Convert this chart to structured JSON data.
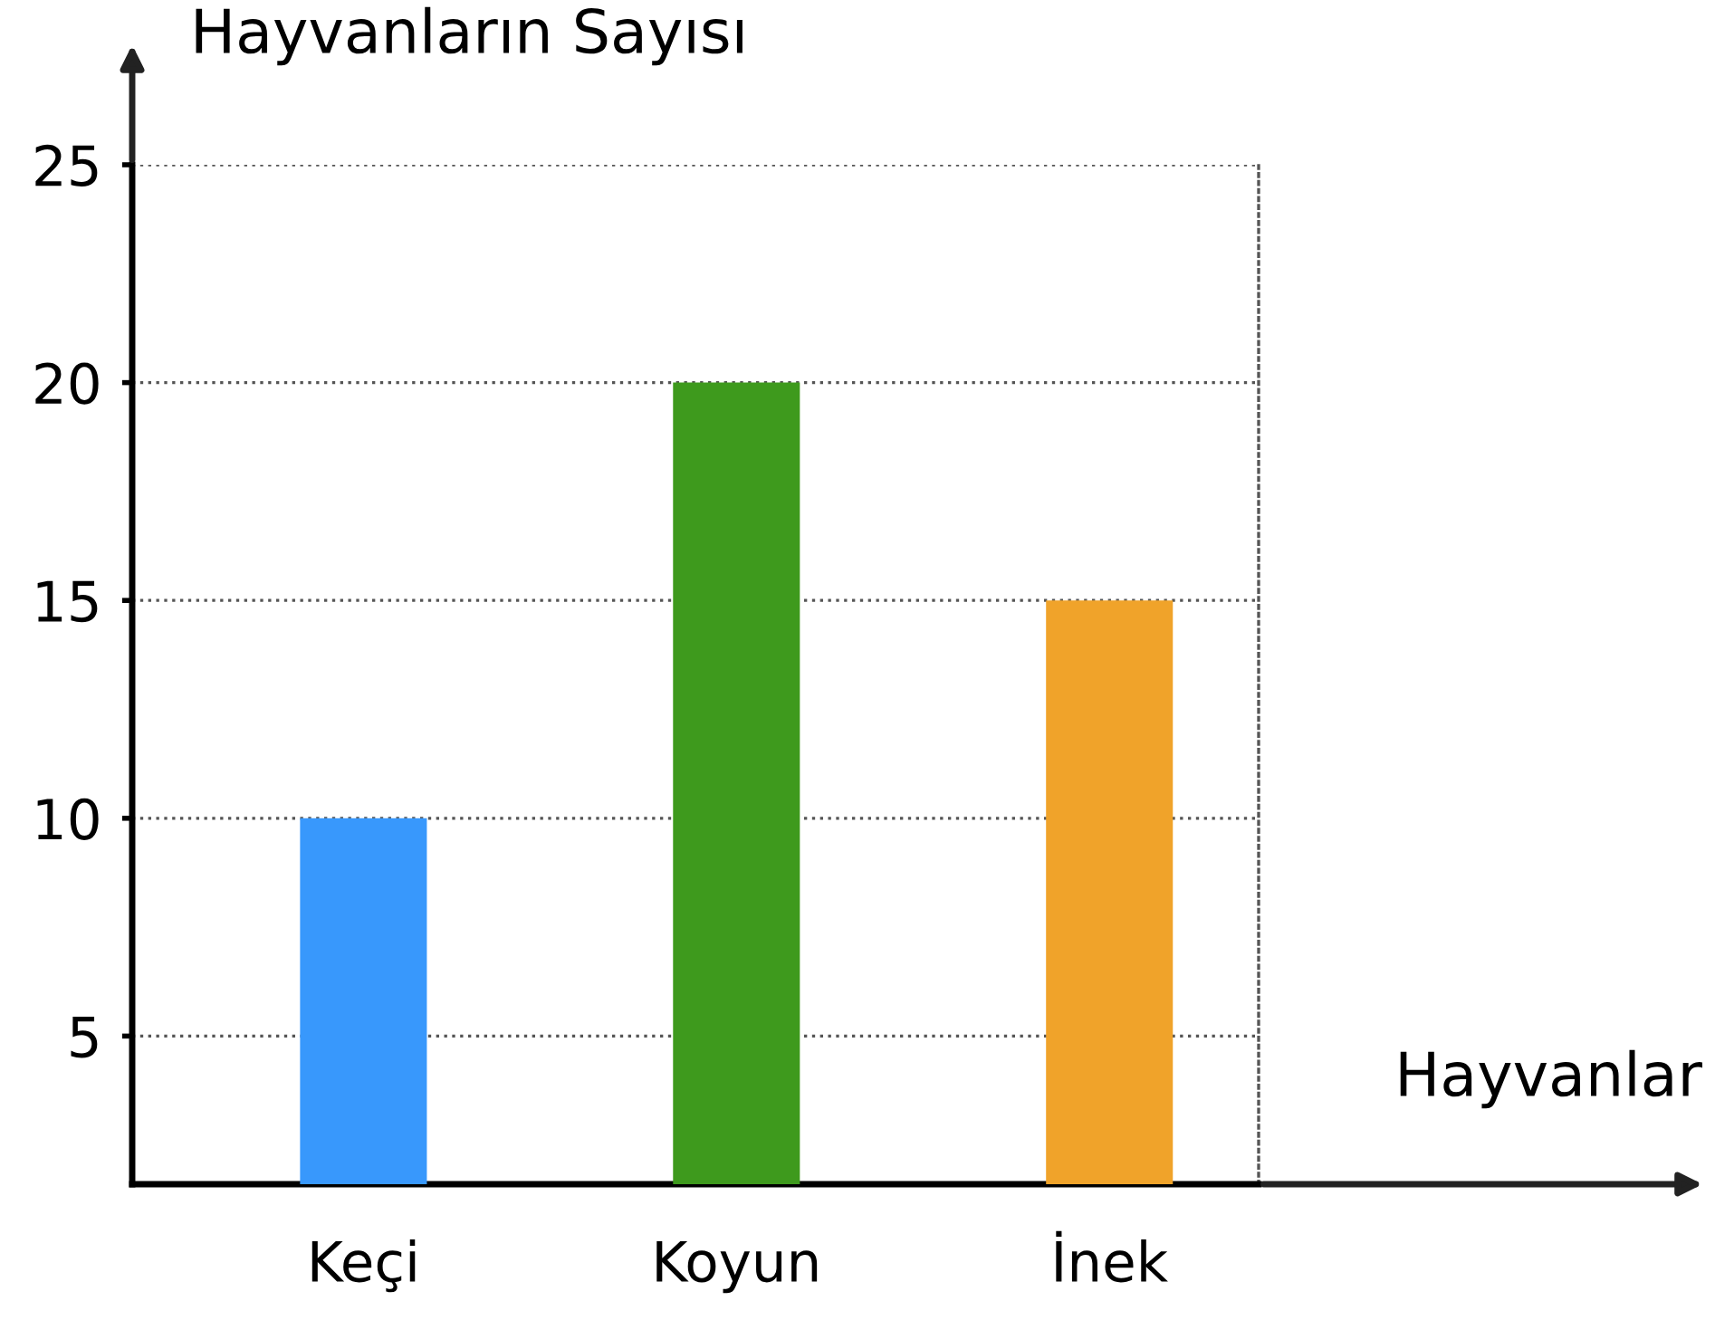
{
  "chart_data": {
    "type": "bar",
    "ylabel": "Hayvanların Sayısı",
    "xlabel": "Hayvanlar",
    "categories": [
      "Keçi",
      "Koyun",
      "İnek"
    ],
    "values": [
      10,
      20,
      15
    ],
    "colors": [
      "#3898fc",
      "#3e9a1d",
      "#f0a32a"
    ],
    "ylim": [
      1.6,
      25
    ],
    "yticks": [
      5,
      10,
      15,
      20,
      25
    ],
    "grid": "y"
  }
}
